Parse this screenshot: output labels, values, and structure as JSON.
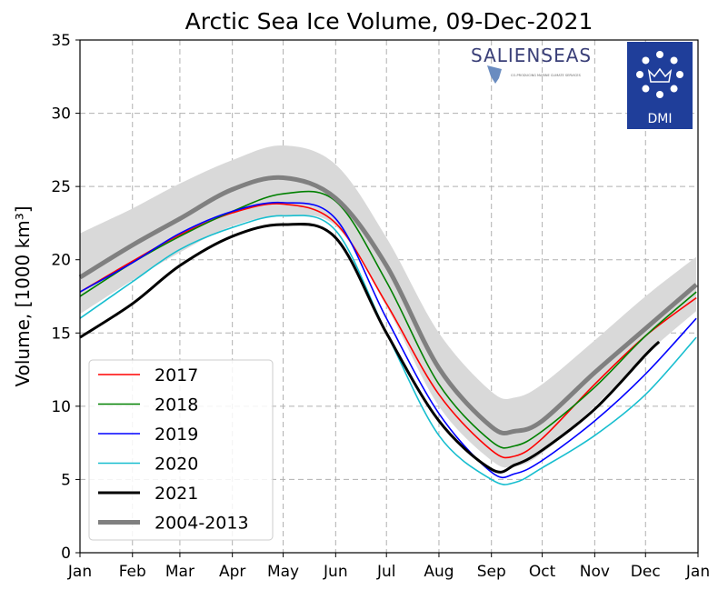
{
  "chart_data": {
    "type": "line",
    "title": "Arctic Sea Ice Volume, 09-Dec-2021",
    "xlabel": "",
    "ylabel": "Volume, [1000 km³]",
    "ylim": [
      0,
      35
    ],
    "yticks": [
      0,
      5,
      10,
      15,
      20,
      25,
      30,
      35
    ],
    "xtick_labels": [
      "Jan",
      "Feb",
      "Mar",
      "Apr",
      "May",
      "Jun",
      "Jul",
      "Aug",
      "Sep",
      "Oct",
      "Nov",
      "Dec",
      "Jan"
    ],
    "grid": true,
    "legend_position": "bottom-left",
    "x": [
      "01-01",
      "02-01",
      "03-01",
      "04-01",
      "05-01",
      "06-01",
      "07-01",
      "08-01",
      "09-01",
      "09-15",
      "10-01",
      "11-01",
      "12-01",
      "12-31"
    ],
    "band": {
      "color": "#d9d9d9",
      "lower": [
        16.3,
        18.6,
        20.5,
        22.3,
        23.0,
        22.3,
        16.8,
        10.0,
        6.3,
        5.9,
        6.8,
        10.0,
        13.5,
        16.5
      ],
      "upper": [
        21.8,
        23.5,
        25.2,
        26.8,
        27.8,
        26.5,
        21.5,
        15.0,
        11.0,
        10.6,
        11.5,
        14.5,
        17.5,
        20.2
      ]
    },
    "series": [
      {
        "name": "2017",
        "color": "#ff0000",
        "width": 1.6,
        "values": [
          17.8,
          19.9,
          21.7,
          23.2,
          23.8,
          22.5,
          17.0,
          10.8,
          7.0,
          6.6,
          7.8,
          11.5,
          14.8,
          17.4
        ]
      },
      {
        "name": "2018",
        "color": "#008000",
        "width": 1.6,
        "values": [
          17.5,
          19.8,
          21.6,
          23.3,
          24.5,
          24.0,
          18.5,
          11.5,
          7.6,
          7.3,
          8.3,
          11.3,
          14.8,
          17.8
        ]
      },
      {
        "name": "2019",
        "color": "#0000ff",
        "width": 1.6,
        "values": [
          17.8,
          19.8,
          21.8,
          23.3,
          23.9,
          22.8,
          16.0,
          9.5,
          5.5,
          5.4,
          6.3,
          9.0,
          12.2,
          16.0
        ]
      },
      {
        "name": "2020",
        "color": "#17becf",
        "width": 1.6,
        "values": [
          16.0,
          18.5,
          20.7,
          22.2,
          23.0,
          22.0,
          15.0,
          8.0,
          5.0,
          4.8,
          5.8,
          8.0,
          10.8,
          14.7
        ]
      },
      {
        "name": "2021",
        "color": "#000000",
        "width": 3,
        "x": [
          "01-01",
          "02-01",
          "03-01",
          "04-01",
          "05-01",
          "06-01",
          "07-01",
          "08-01",
          "09-01",
          "09-15",
          "10-01",
          "11-01",
          "12-01",
          "12-09"
        ],
        "values": [
          14.7,
          17.0,
          19.6,
          21.6,
          22.4,
          21.5,
          15.0,
          9.0,
          5.7,
          6.0,
          7.0,
          9.8,
          13.5,
          14.4
        ]
      },
      {
        "name": "2004-2013",
        "color": "#808080",
        "width": 5,
        "values": [
          18.8,
          21.0,
          22.8,
          24.8,
          25.6,
          24.2,
          19.6,
          12.6,
          8.6,
          8.3,
          9.0,
          12.3,
          15.3,
          18.3
        ]
      }
    ]
  },
  "logos": {
    "salienseas": "SALIENSEAS",
    "salienseas_tagline": "CO-PRODUCING MARINE CLIMATE SERVICES",
    "dmi": "DMI",
    "dmi_color": "#1f3e9a"
  }
}
